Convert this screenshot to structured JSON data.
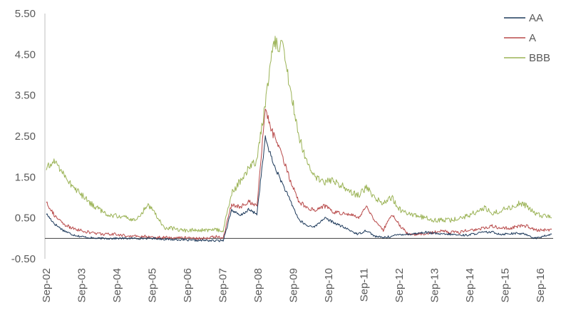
{
  "chart_data": {
    "type": "line",
    "title": "",
    "xlabel": "",
    "ylabel": "",
    "ylim": [
      -0.5,
      5.5
    ],
    "y_ticks": [
      "5.50",
      "4.50",
      "3.50",
      "2.50",
      "1.50",
      "0.50",
      "-0.50"
    ],
    "x_ticks": [
      "Sep-02",
      "Sep-03",
      "Sep-04",
      "Sep-05",
      "Sep-06",
      "Sep-07",
      "Sep-08",
      "Sep-09",
      "Sep-10",
      "Sep-11",
      "Sep-12",
      "Sep-13",
      "Sep-14",
      "Sep-15",
      "Sep-16"
    ],
    "grid": false,
    "legend": "top-right",
    "series": [
      {
        "name": "AA",
        "color": "#1f3b5c",
        "values": [
          0.6,
          0.35,
          0.2,
          0.1,
          0.05,
          0.02,
          0.0,
          0.0,
          0.0,
          0.0,
          0.0,
          0.0,
          0.0,
          0.0,
          -0.02,
          -0.03,
          -0.03,
          -0.05,
          -0.05,
          -0.05,
          -0.06,
          -0.05,
          0.7,
          0.55,
          0.7,
          0.6,
          2.45,
          1.8,
          1.35,
          0.9,
          0.45,
          0.3,
          0.3,
          0.5,
          0.4,
          0.3,
          0.2,
          0.1,
          0.2,
          0.05,
          0.02,
          0.05,
          0.1,
          0.1,
          0.12,
          0.15,
          0.12,
          0.1,
          0.1,
          0.08,
          0.08,
          0.12,
          0.15,
          0.15,
          0.1,
          0.12,
          0.12,
          0.1,
          0.0,
          0.05,
          0.1
        ]
      },
      {
        "name": "A",
        "color": "#b84a4a",
        "values": [
          0.9,
          0.55,
          0.35,
          0.25,
          0.2,
          0.15,
          0.12,
          0.1,
          0.1,
          0.08,
          0.05,
          0.05,
          0.04,
          0.03,
          0.02,
          0.02,
          0.02,
          0.02,
          0.0,
          0.0,
          0.05,
          0.0,
          0.85,
          0.75,
          0.9,
          0.8,
          3.15,
          2.5,
          2.0,
          1.4,
          0.9,
          0.75,
          0.7,
          0.8,
          0.65,
          0.6,
          0.6,
          0.5,
          0.8,
          0.4,
          0.2,
          0.6,
          0.3,
          0.1,
          0.1,
          0.12,
          0.15,
          0.2,
          0.15,
          0.15,
          0.2,
          0.22,
          0.25,
          0.3,
          0.25,
          0.25,
          0.3,
          0.3,
          0.2,
          0.2,
          0.22
        ]
      },
      {
        "name": "BBB",
        "color": "#9bb356",
        "values": [
          1.7,
          1.9,
          1.6,
          1.3,
          1.1,
          0.9,
          0.75,
          0.6,
          0.55,
          0.55,
          0.45,
          0.5,
          0.85,
          0.6,
          0.25,
          0.25,
          0.2,
          0.2,
          0.2,
          0.2,
          0.2,
          0.2,
          1.1,
          1.4,
          1.7,
          1.9,
          3.3,
          4.8,
          4.7,
          3.6,
          2.5,
          1.8,
          1.5,
          1.35,
          1.45,
          1.3,
          1.15,
          1.05,
          1.25,
          1.0,
          0.85,
          1.0,
          0.7,
          0.6,
          0.55,
          0.5,
          0.45,
          0.45,
          0.45,
          0.5,
          0.55,
          0.65,
          0.75,
          0.6,
          0.7,
          0.75,
          0.85,
          0.8,
          0.6,
          0.55,
          0.5
        ]
      }
    ]
  }
}
